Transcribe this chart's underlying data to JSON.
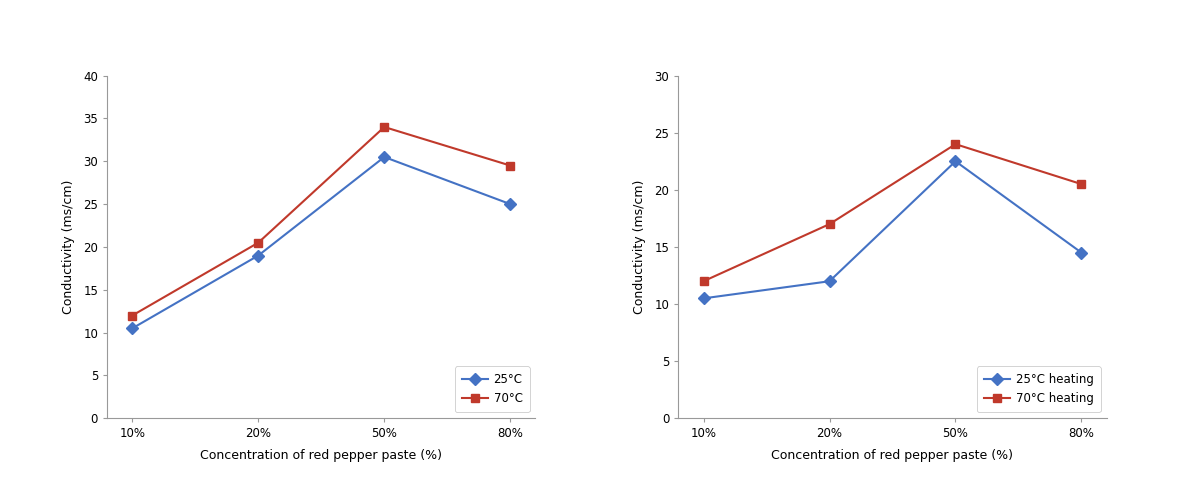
{
  "x_labels": [
    "10%",
    "20%",
    "50%",
    "80%"
  ],
  "chart1": {
    "ylabel": "Conductivity (ms/cm)",
    "xlabel": "Concentration of red pepper paste (%)",
    "ylim": [
      0,
      40
    ],
    "yticks": [
      0,
      5,
      10,
      15,
      20,
      25,
      30,
      35,
      40
    ],
    "series": [
      {
        "label": "25°C",
        "values": [
          10.5,
          19.0,
          30.5,
          25.0
        ],
        "color": "#4472C4",
        "marker": "D",
        "markersize": 6
      },
      {
        "label": "70°C",
        "values": [
          12.0,
          20.5,
          34.0,
          29.5
        ],
        "color": "#C0392B",
        "marker": "s",
        "markersize": 6
      }
    ]
  },
  "chart2": {
    "ylabel": "Conductivity (ms/cm)",
    "xlabel": "Concentration of red pepper paste (%)",
    "ylim": [
      0,
      30
    ],
    "yticks": [
      0,
      5,
      10,
      15,
      20,
      25,
      30
    ],
    "series": [
      {
        "label": "25°C heating",
        "values": [
          10.5,
          12.0,
          22.5,
          14.5
        ],
        "color": "#4472C4",
        "marker": "D",
        "markersize": 6
      },
      {
        "label": "70°C heating",
        "values": [
          12.0,
          17.0,
          24.0,
          20.5
        ],
        "color": "#C0392B",
        "marker": "s",
        "markersize": 6
      }
    ]
  },
  "background_color": "#ffffff",
  "plot_bg_color": "#ffffff",
  "line_width": 1.5,
  "font_size_label": 9,
  "font_size_tick": 8.5,
  "font_size_legend": 8.5
}
